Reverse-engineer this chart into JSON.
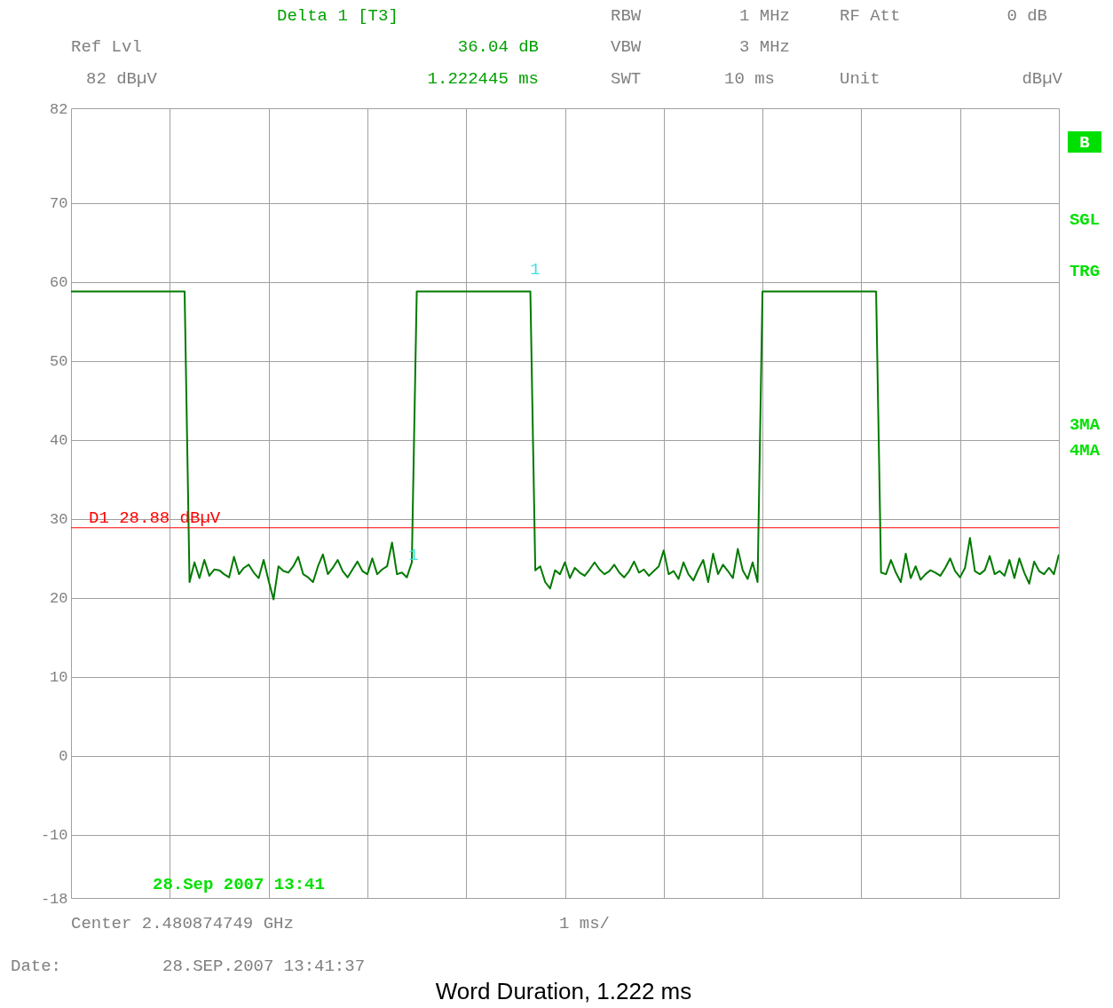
{
  "chart_data": {
    "type": "line",
    "title": "Word Duration, 1.222 ms",
    "categories": [
      null,
      null,
      null,
      null,
      null,
      null,
      null,
      null,
      null,
      null,
      null,
      null,
      null,
      null,
      null,
      null,
      null,
      null,
      null,
      null,
      null,
      null,
      null,
      null,
      null,
      null,
      null,
      null,
      null,
      null,
      null,
      null,
      null,
      null,
      null,
      null,
      null,
      null,
      null,
      null,
      null,
      null,
      null,
      null,
      null,
      null,
      null,
      null,
      null,
      null,
      null,
      null,
      null,
      null,
      null,
      null,
      null,
      null,
      null,
      null,
      null,
      null,
      null,
      null,
      null,
      null,
      null,
      null,
      null,
      null,
      null,
      null,
      null,
      null,
      null,
      null,
      null,
      null,
      null,
      null,
      null,
      null,
      null,
      null,
      null,
      null,
      null,
      null,
      null,
      null,
      null,
      null,
      null,
      null,
      null,
      null,
      null,
      null,
      null,
      null,
      null,
      null,
      null,
      null,
      null,
      null,
      null,
      null,
      null,
      null,
      null,
      null,
      null,
      null,
      null,
      null,
      null,
      null,
      null,
      null,
      null,
      null,
      null,
      null,
      null,
      null,
      null,
      null,
      null,
      null,
      null,
      null,
      null,
      null,
      null,
      null,
      null,
      null,
      null,
      null,
      null,
      null,
      null,
      null,
      null,
      null,
      null,
      null,
      null,
      null,
      null,
      null,
      null,
      null,
      null,
      null,
      null,
      null,
      null,
      null,
      null,
      null,
      null,
      null,
      null,
      null,
      null,
      null,
      null,
      null,
      null,
      null,
      null,
      null,
      null,
      null,
      null,
      null,
      null,
      null,
      null,
      null,
      null,
      null,
      null,
      null,
      null,
      null,
      null,
      null,
      null,
      null,
      null,
      null,
      null,
      null,
      null,
      null,
      null,
      null,
      null
    ],
    "series": [
      {
        "color": "#007a00",
        "values": [
          58.8,
          58.8,
          58.8,
          58.8,
          58.8,
          58.8,
          58.8,
          58.8,
          58.8,
          58.8,
          58.8,
          58.8,
          58.8,
          58.8,
          58.8,
          58.8,
          58.8,
          58.8,
          58.8,
          58.8,
          58.8,
          58.8,
          58.8,
          58.8,
          22.0,
          24.5,
          22.5,
          24.8,
          22.8,
          23.6,
          23.5,
          23.0,
          22.6,
          25.2,
          23.0,
          23.8,
          24.2,
          23.2,
          22.5,
          24.8,
          22.2,
          19.8,
          24.0,
          23.4,
          23.2,
          24.0,
          25.2,
          23.0,
          22.6,
          22.0,
          24.0,
          25.5,
          23.0,
          23.8,
          24.8,
          23.4,
          22.6,
          23.6,
          24.6,
          23.4,
          23.0,
          25.0,
          23.0,
          23.6,
          24.0,
          27.0,
          23.0,
          23.2,
          22.6,
          24.5,
          58.8,
          58.8,
          58.8,
          58.8,
          58.8,
          58.8,
          58.8,
          58.8,
          58.8,
          58.8,
          58.8,
          58.8,
          58.8,
          58.8,
          58.8,
          58.8,
          58.8,
          58.8,
          58.8,
          58.8,
          58.8,
          58.8,
          58.8,
          58.8,
          23.5,
          24.0,
          22.0,
          21.2,
          23.5,
          23.0,
          24.5,
          22.5,
          23.8,
          23.2,
          22.8,
          23.6,
          24.5,
          23.6,
          23.0,
          23.4,
          24.2,
          23.2,
          22.6,
          23.4,
          24.6,
          23.2,
          23.6,
          22.8,
          23.4,
          24.0,
          26.0,
          23.0,
          23.4,
          22.4,
          24.5,
          23.0,
          22.2,
          23.6,
          24.8,
          22.0,
          25.6,
          23.0,
          24.2,
          23.4,
          22.5,
          26.2,
          23.5,
          22.4,
          24.5,
          22.0,
          58.8,
          58.8,
          58.8,
          58.8,
          58.8,
          58.8,
          58.8,
          58.8,
          58.8,
          58.8,
          58.8,
          58.8,
          58.8,
          58.8,
          58.8,
          58.8,
          58.8,
          58.8,
          58.8,
          58.8,
          58.8,
          58.8,
          58.8,
          58.8,
          23.2,
          23.0,
          24.8,
          23.2,
          22.0,
          25.6,
          22.5,
          24.0,
          22.3,
          23.0,
          23.5,
          23.2,
          22.8,
          23.8,
          25.0,
          23.4,
          22.6,
          23.8,
          27.6,
          23.4,
          23.0,
          23.5,
          25.3,
          23.0,
          23.4,
          22.8,
          24.8,
          22.5,
          25.0,
          23.2,
          21.8,
          24.6,
          23.4,
          23.0,
          23.8,
          23.0,
          25.5
        ]
      }
    ],
    "ylim": [
      -18,
      82
    ],
    "yticks": [
      -18,
      -10,
      0,
      10,
      20,
      30,
      40,
      50,
      60,
      70,
      82
    ],
    "tick_labels": "y",
    "grid": true,
    "ref_lines": [
      {
        "axis": "y",
        "value": 28.88,
        "label": "D1 28.88 dBµV",
        "color": "#ff0000"
      }
    ],
    "annotations": [
      "1",
      "1",
      "Delta 1 [T3]",
      "Ref Lvl",
      "36.04 dB",
      "82 dBµV",
      "1.222445 ms",
      "RBW",
      "1 MHz",
      "VBW",
      "3 MHz",
      "SWT",
      "10 ms",
      "RF Att",
      "0 dB",
      "Unit",
      "dBµV",
      "B",
      "SGL",
      "TRG",
      "3MA",
      "4MA",
      "28.Sep 2007 13:41",
      "Center 2.480874749 GHz",
      "1 ms/",
      "Date:",
      "28.SEP.2007  13:41:37"
    ]
  }
}
